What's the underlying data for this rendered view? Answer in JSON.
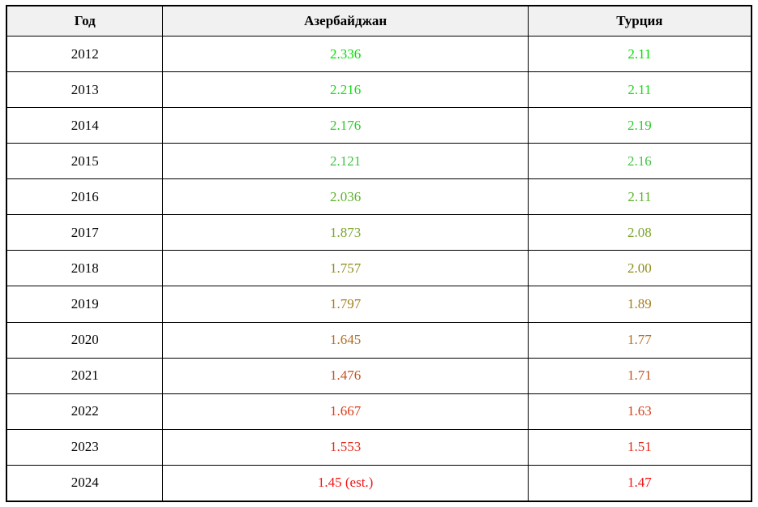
{
  "table": {
    "columns": [
      {
        "label": "Год"
      },
      {
        "label": "Азербайджан"
      },
      {
        "label": "Турция"
      }
    ],
    "rows": [
      {
        "year": "2012",
        "azerbaijan": "2.336",
        "turkey": "2.11",
        "color": "#00e000"
      },
      {
        "year": "2013",
        "azerbaijan": "2.216",
        "turkey": "2.11",
        "color": "#18d818"
      },
      {
        "year": "2014",
        "azerbaijan": "2.176",
        "turkey": "2.19",
        "color": "#2dcb2d"
      },
      {
        "year": "2015",
        "azerbaijan": "2.121",
        "turkey": "2.16",
        "color": "#43c243"
      },
      {
        "year": "2016",
        "azerbaijan": "2.036",
        "turkey": "2.11",
        "color": "#5cb22c"
      },
      {
        "year": "2017",
        "azerbaijan": "1.873",
        "turkey": "2.08",
        "color": "#7ba42b"
      },
      {
        "year": "2018",
        "azerbaijan": "1.757",
        "turkey": "2.00",
        "color": "#918c1e"
      },
      {
        "year": "2019",
        "azerbaijan": "1.797",
        "turkey": "1.89",
        "color": "#a67e20"
      },
      {
        "year": "2020",
        "azerbaijan": "1.645",
        "turkey": "1.77",
        "color": "#b36d26"
      },
      {
        "year": "2021",
        "azerbaijan": "1.476",
        "turkey": "1.71",
        "color": "#c05525"
      },
      {
        "year": "2022",
        "azerbaijan": "1.667",
        "turkey": "1.63",
        "color": "#d63f1c"
      },
      {
        "year": "2023",
        "azerbaijan": "1.553",
        "turkey": "1.51",
        "color": "#e42a1a"
      },
      {
        "year": "2024",
        "azerbaijan": "1.45 (est.)",
        "turkey": "1.47",
        "color": "#f01313"
      }
    ],
    "header_background": "#f1f1f1",
    "border_color": "#000000"
  },
  "chart_data": {
    "type": "table",
    "title": "",
    "categories": [
      "2012",
      "2013",
      "2014",
      "2015",
      "2016",
      "2017",
      "2018",
      "2019",
      "2020",
      "2021",
      "2022",
      "2023",
      "2024"
    ],
    "series": [
      {
        "name": "Азербайджан",
        "values": [
          2.336,
          2.216,
          2.176,
          2.121,
          2.036,
          1.873,
          1.757,
          1.797,
          1.645,
          1.476,
          1.667,
          1.553,
          1.45
        ]
      },
      {
        "name": "Турция",
        "values": [
          2.11,
          2.11,
          2.19,
          2.16,
          2.11,
          2.08,
          2.0,
          1.89,
          1.77,
          1.71,
          1.63,
          1.51,
          1.47
        ]
      }
    ],
    "annotations": [
      "2024 Азербайджан value marked as estimate: 1.45 (est.)"
    ],
    "xlabel": "Год",
    "ylabel": "",
    "value_color_scale": "green (high, top rows) to red (low, bottom rows)"
  }
}
